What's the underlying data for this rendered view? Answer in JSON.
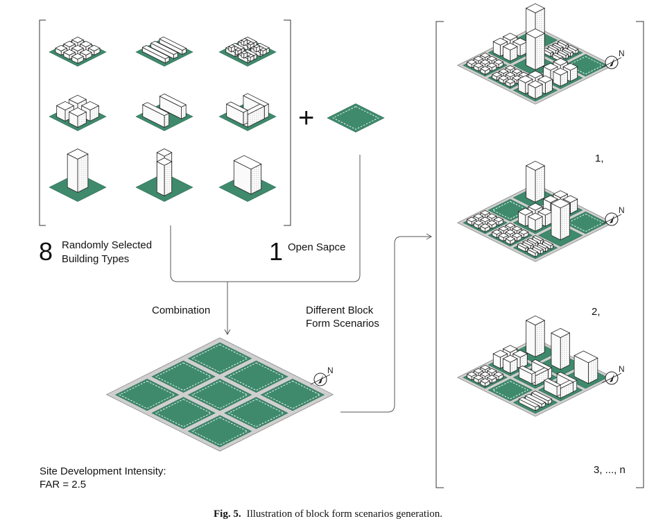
{
  "colors": {
    "ground": "#3f8a6d",
    "road": "#cfcfcf",
    "stroke": "#1e1e1e",
    "building": "#ffffff"
  },
  "building_types": {
    "count": "8",
    "label_line1": "Randomly Selected",
    "label_line2": "Building Types"
  },
  "open_space": {
    "count": "1",
    "label": "Open Sapce",
    "plus": "+"
  },
  "combination_label": "Combination",
  "scenarios_label_line1": "Different Block",
  "scenarios_label_line2": "Form Scenarios",
  "site_intensity_line1": "Site Development Intensity:",
  "site_intensity_line2": "FAR = 2.5",
  "scenarios": [
    {
      "label": "1,"
    },
    {
      "label": "2,"
    },
    {
      "label": "3, ..., n"
    }
  ],
  "north_label": "N",
  "caption": {
    "fig": "Fig. 5.",
    "text": "Illustration of block form scenarios generation."
  },
  "icons": [
    "north-arrow-icon",
    "plus-icon",
    "arrow-down-icon",
    "arrow-right-icon"
  ]
}
